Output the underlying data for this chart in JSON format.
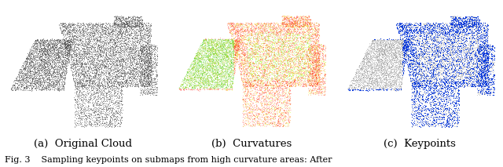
{
  "title": "Fig. 3    Sampling keypoints on submaps from high curvature areas: After",
  "captions": [
    "(a)  Original Cloud",
    "(b)  Curvatures",
    "(c)  Keypoints"
  ],
  "fig_width": 6.4,
  "fig_height": 2.13,
  "bg_color": "#ffffff",
  "n_points": 12000,
  "caption_fontsize": 9.5,
  "fig_caption_fontsize": 8.0,
  "seed": 42
}
